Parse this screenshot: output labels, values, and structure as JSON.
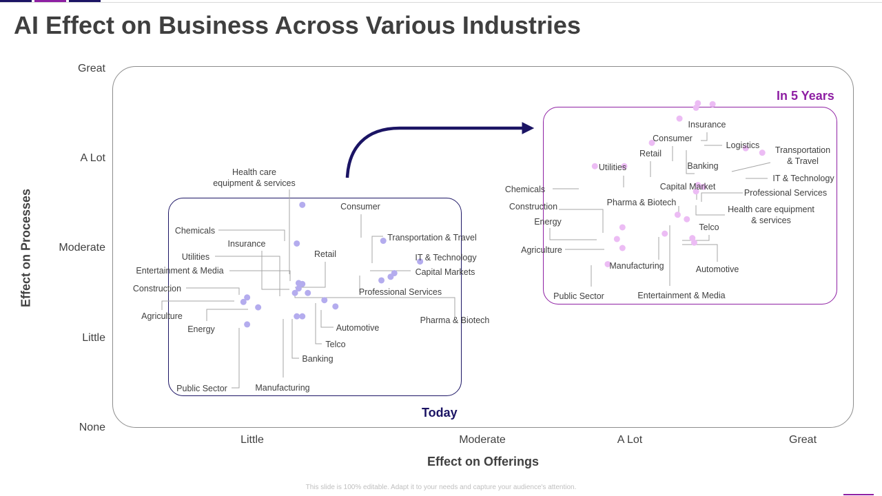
{
  "slide": {
    "title": "AI Effect on Business Across Various Industries",
    "footer": "This slide is 100% editable. Adapt it to your needs and capture your audience's attention."
  },
  "chart_data": {
    "type": "scatter",
    "title": "AI Effect on Business Across Various Industries",
    "xlabel": "Effect on Offerings",
    "ylabel": "Effect on Processes",
    "x_ticks": [
      "Little",
      "Moderate",
      "A Lot",
      "Great"
    ],
    "y_ticks": [
      "Great",
      "A Lot",
      "Moderate",
      "Little",
      "None"
    ],
    "colors": {
      "today": "#b4acee",
      "future": "#ecbcf4",
      "today_box": "#1b1464",
      "future_box": "#8e1fa3",
      "arrow": "#1b1464"
    },
    "series": [
      {
        "name": "Today",
        "points": [
          {
            "label": "Health care equipment & services",
            "x": 1.22,
            "y": 2.48
          },
          {
            "label": "Chemicals",
            "x": 1.19,
            "y": 2.05
          },
          {
            "label": "Insurance",
            "x": 1.2,
            "y": 1.55
          },
          {
            "label": "Utilities",
            "x": 1.18,
            "y": 1.5
          },
          {
            "label": "Entertainment & Media",
            "x": 1.22,
            "y": 1.6
          },
          {
            "label": "Retail",
            "x": 1.25,
            "y": 1.5
          },
          {
            "label": "Construction",
            "x": 0.92,
            "y": 1.45
          },
          {
            "label": "Agriculture",
            "x": 0.9,
            "y": 1.4
          },
          {
            "label": "Energy",
            "x": 0.98,
            "y": 1.34
          },
          {
            "label": "Public Sector",
            "x": 0.92,
            "y": 1.15
          },
          {
            "label": "Manufacturing",
            "x": 1.19,
            "y": 1.24
          },
          {
            "label": "Banking",
            "x": 1.22,
            "y": 1.24
          },
          {
            "label": "Telco",
            "x": 1.34,
            "y": 1.42
          },
          {
            "label": "Automotive",
            "x": 1.4,
            "y": 1.35
          },
          {
            "label": "Consumer",
            "x": 1.66,
            "y": 2.08
          },
          {
            "label": "Transportation & Travel",
            "x": 1.72,
            "y": 1.72
          },
          {
            "label": "IT & Technology",
            "x": 1.86,
            "y": 1.85
          },
          {
            "label": "Capital Markets",
            "x": 1.7,
            "y": 1.68
          },
          {
            "label": "Professional Services",
            "x": 1.65,
            "y": 1.64
          },
          {
            "label": "Pharma & Biotech",
            "x": 1.2,
            "y": 1.61
          }
        ]
      },
      {
        "name": "In 5 Years",
        "points": [
          {
            "label": "Insurance",
            "x": 3.37,
            "y": 3.61
          },
          {
            "label": "Logistics",
            "x": 3.45,
            "y": 3.6
          },
          {
            "label": "Consumer",
            "x": 3.27,
            "y": 3.44
          },
          {
            "label": "Retail",
            "x": 3.12,
            "y": 3.17
          },
          {
            "label": "Utilities",
            "x": 2.97,
            "y": 2.91
          },
          {
            "label": "Banking",
            "x": 3.36,
            "y": 3.56
          },
          {
            "label": "Transportation & Travel",
            "x": 3.63,
            "y": 3.11
          },
          {
            "label": "IT & Technology",
            "x": 3.72,
            "y": 3.06
          },
          {
            "label": "Chemicals",
            "x": 2.81,
            "y": 2.91
          },
          {
            "label": "Capital Market",
            "x": 3.37,
            "y": 2.7
          },
          {
            "label": "Professional Services",
            "x": 3.4,
            "y": 2.68
          },
          {
            "label": "Pharma & Biotech",
            "x": 3.31,
            "y": 2.32
          },
          {
            "label": "Health care equipment & services",
            "x": 3.36,
            "y": 2.63
          },
          {
            "label": "Construction",
            "x": 2.96,
            "y": 2.23
          },
          {
            "label": "Energy",
            "x": 2.93,
            "y": 2.1
          },
          {
            "label": "Agriculture",
            "x": 2.96,
            "y": 2.0
          },
          {
            "label": "Telco",
            "x": 3.34,
            "y": 2.11
          },
          {
            "label": "Automotive",
            "x": 3.35,
            "y": 2.06
          },
          {
            "label": "Manufacturing",
            "x": 3.19,
            "y": 2.16
          },
          {
            "label": "Entertainment & Media",
            "x": 3.26,
            "y": 2.37
          },
          {
            "label": "Public Sector",
            "x": 2.88,
            "y": 1.82
          }
        ]
      }
    ]
  }
}
